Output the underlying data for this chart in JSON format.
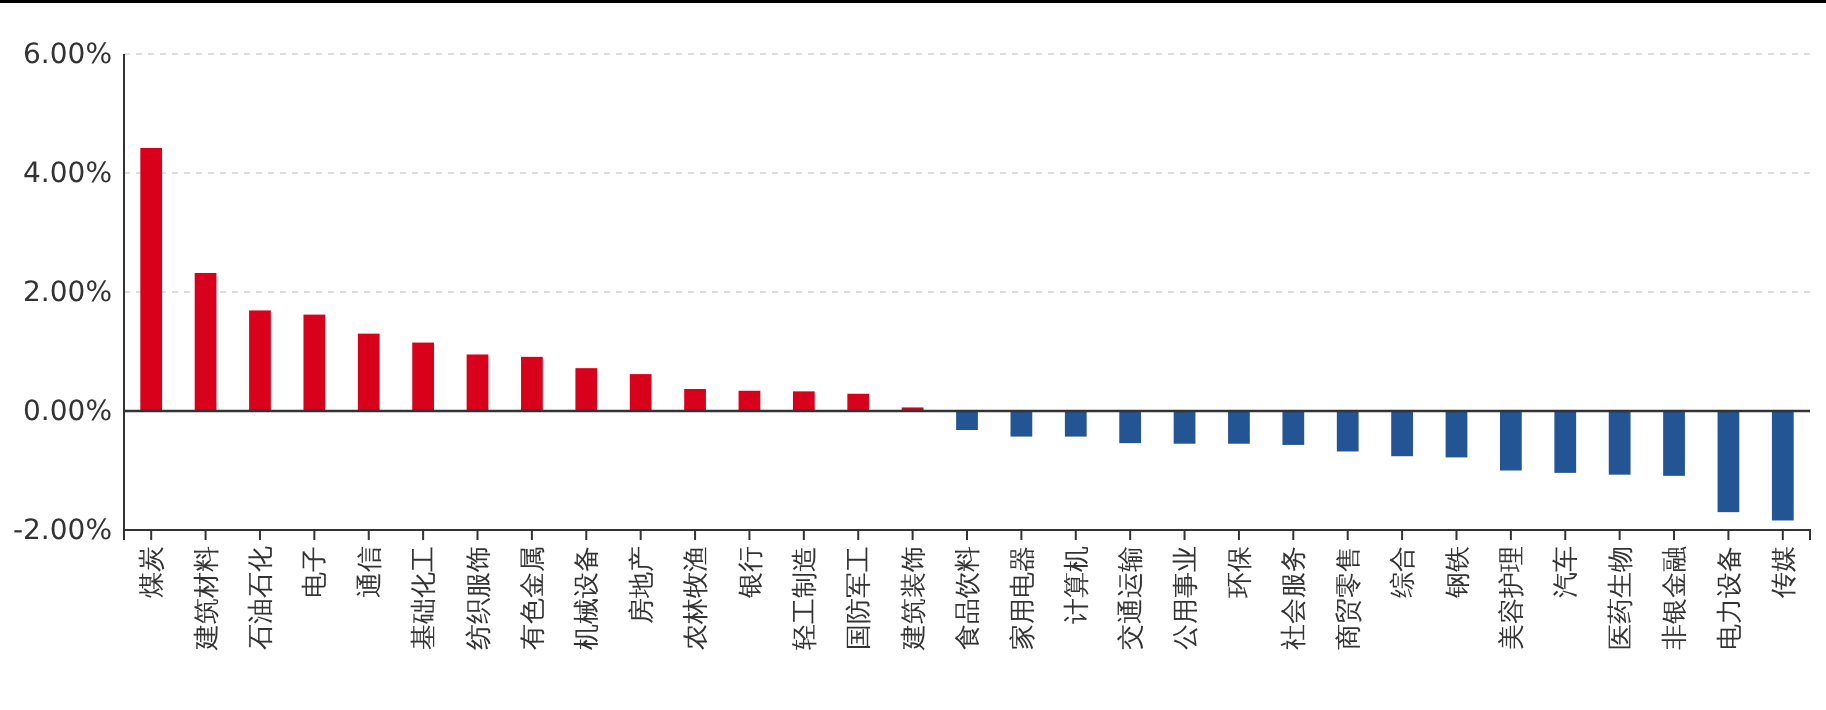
{
  "chart_data": {
    "type": "bar",
    "categories": [
      "煤炭",
      "建筑材料",
      "石油石化",
      "电子",
      "通信",
      "基础化工",
      "纺织服饰",
      "有色金属",
      "机械设备",
      "房地产",
      "农林牧渔",
      "银行",
      "轻工制造",
      "国防军工",
      "建筑装饰",
      "食品饮料",
      "家用电器",
      "计算机",
      "交通运输",
      "公用事业",
      "环保",
      "社会服务",
      "商贸零售",
      "综合",
      "钢铁",
      "美容护理",
      "汽车",
      "医药生物",
      "非银金融",
      "电力设备",
      "传媒"
    ],
    "values": [
      4.42,
      2.32,
      1.69,
      1.62,
      1.3,
      1.15,
      0.95,
      0.91,
      0.72,
      0.62,
      0.37,
      0.34,
      0.33,
      0.29,
      0.06,
      -0.32,
      -0.43,
      -0.43,
      -0.54,
      -0.55,
      -0.55,
      -0.57,
      -0.68,
      -0.76,
      -0.78,
      -1.0,
      -1.04,
      -1.07,
      -1.09,
      -1.7,
      -1.84
    ],
    "colors": [
      "#d9001b",
      "#d9001b",
      "#d9001b",
      "#d9001b",
      "#d9001b",
      "#d9001b",
      "#d9001b",
      "#d9001b",
      "#d9001b",
      "#d9001b",
      "#d9001b",
      "#d9001b",
      "#d9001b",
      "#d9001b",
      "#d9001b",
      "#235594",
      "#235594",
      "#235594",
      "#235594",
      "#235594",
      "#235594",
      "#235594",
      "#235594",
      "#235594",
      "#235594",
      "#235594",
      "#235594",
      "#235594",
      "#235594",
      "#235594",
      "#235594"
    ],
    "ylim": [
      -2,
      6
    ],
    "yticks": [
      {
        "value": -2,
        "label": "-2.00%"
      },
      {
        "value": 0,
        "label": "0.00%"
      },
      {
        "value": 2,
        "label": "2.00%"
      },
      {
        "value": 4,
        "label": "4.00%"
      },
      {
        "value": 6,
        "label": "6.00%"
      }
    ],
    "grid": "y"
  }
}
